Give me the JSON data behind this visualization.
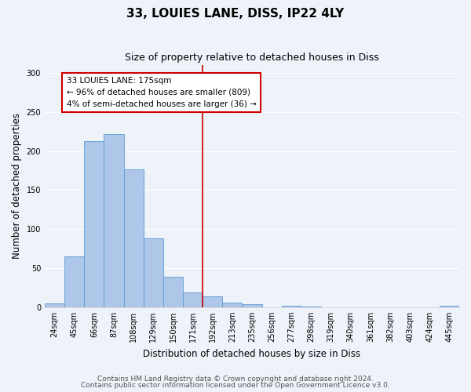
{
  "title": "33, LOUIES LANE, DISS, IP22 4LY",
  "subtitle": "Size of property relative to detached houses in Diss",
  "xlabel": "Distribution of detached houses by size in Diss",
  "ylabel": "Number of detached properties",
  "bin_labels": [
    "24sqm",
    "45sqm",
    "66sqm",
    "87sqm",
    "108sqm",
    "129sqm",
    "150sqm",
    "171sqm",
    "192sqm",
    "213sqm",
    "235sqm",
    "256sqm",
    "277sqm",
    "298sqm",
    "319sqm",
    "340sqm",
    "361sqm",
    "382sqm",
    "403sqm",
    "424sqm",
    "445sqm"
  ],
  "bar_values": [
    5,
    65,
    213,
    222,
    177,
    88,
    39,
    19,
    14,
    6,
    4,
    0,
    2,
    1,
    0,
    0,
    0,
    0,
    0,
    0,
    2
  ],
  "bar_color": "#aec6e8",
  "bar_edge_color": "#5b9bd5",
  "vline_x": 7.5,
  "vline_color": "#cc0000",
  "annotation_text": "33 LOUIES LANE: 175sqm\n← 96% of detached houses are smaller (809)\n4% of semi-detached houses are larger (36) →",
  "annotation_box_color": "#ffffff",
  "annotation_box_edge": "#cc0000",
  "ylim": [
    0,
    310
  ],
  "yticks": [
    0,
    50,
    100,
    150,
    200,
    250,
    300
  ],
  "footer1": "Contains HM Land Registry data © Crown copyright and database right 2024.",
  "footer2": "Contains public sector information licensed under the Open Government Licence v3.0.",
  "background_color": "#eef2f9",
  "plot_background": "#eef2f9",
  "title_fontsize": 11,
  "subtitle_fontsize": 9,
  "axis_label_fontsize": 8.5,
  "tick_fontsize": 7,
  "footer_fontsize": 6.5,
  "ann_fontsize": 7.5
}
